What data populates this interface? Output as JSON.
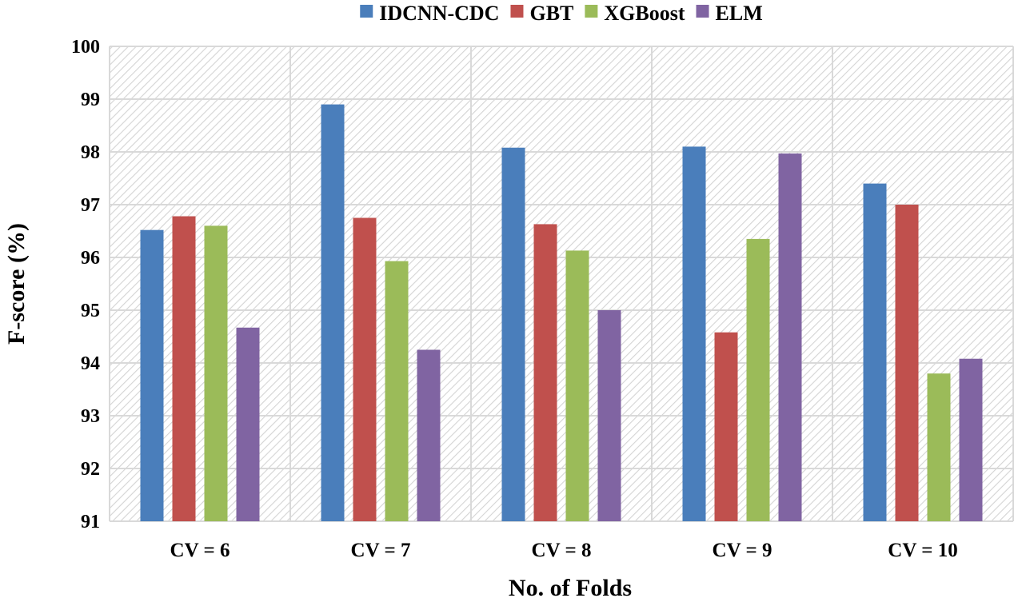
{
  "chart_data": {
    "type": "bar",
    "categories": [
      "CV = 6",
      "CV = 7",
      "CV = 8",
      "CV = 9",
      "CV = 10"
    ],
    "series": [
      {
        "name": "IDCNN-CDC",
        "color": "#4a7ebb",
        "values": [
          96.52,
          98.9,
          98.08,
          98.1,
          97.4
        ]
      },
      {
        "name": "GBT",
        "color": "#c0504d",
        "values": [
          96.78,
          96.75,
          96.63,
          94.58,
          97.0
        ]
      },
      {
        "name": "XGBoost",
        "color": "#9bbb59",
        "values": [
          96.6,
          95.93,
          96.13,
          96.35,
          93.8
        ]
      },
      {
        "name": "ELM",
        "color": "#8064a2",
        "values": [
          94.67,
          94.25,
          95.0,
          97.97,
          94.08
        ]
      }
    ],
    "xlabel": "No. of Folds",
    "ylabel": "F-score (%)",
    "ylim": [
      91,
      100
    ],
    "yticks": [
      "91",
      "92",
      "93",
      "94",
      "95",
      "96",
      "97",
      "98",
      "99",
      "100"
    ],
    "grid": true,
    "legend_position": "top"
  }
}
